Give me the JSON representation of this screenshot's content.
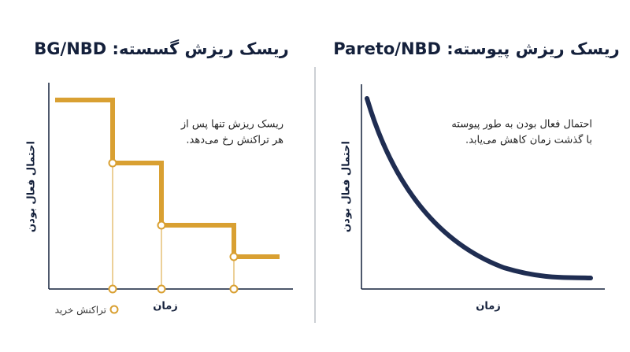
{
  "left_panel": {
    "title": "ریسک ریزش گسسته: BG/NBD",
    "annotation": [
      "ریسک ریزش تنها پس از",
      "هر تراکنش رخ می‌دهد."
    ],
    "y_label": "احتمال فعال بودن",
    "x_label": "زمان",
    "legend": "تراکنش خرید"
  },
  "right_panel": {
    "title": "ریسک ریزش پیوسته: Pareto/NBD",
    "annotation": [
      "احتمال فعال بودن به طور پیوسته",
      "با گذشت زمان کاهش می‌یابد."
    ],
    "y_label": "احتمال فعال بودن",
    "x_label": "زمان"
  }
}
